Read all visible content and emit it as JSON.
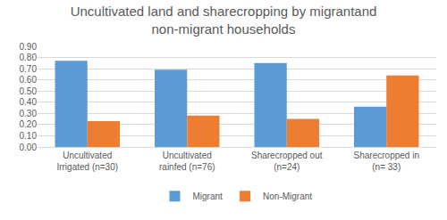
{
  "chart_data": {
    "type": "bar",
    "title": "Uncultivated land and sharecropping by migrantand non-migrant households",
    "categories": [
      "Uncultivated Irrigated (n=30)",
      "Uncultivated rainfed (n=76)",
      "Sharecropped out (n=24)",
      "Sharecropped in (n= 33)"
    ],
    "series": [
      {
        "name": "Migrant",
        "color": "#5B9BD5",
        "values": [
          0.77,
          0.69,
          0.75,
          0.36
        ]
      },
      {
        "name": "Non-Migrant",
        "color": "#ED7D31",
        "values": [
          0.23,
          0.28,
          0.25,
          0.64
        ]
      }
    ],
    "ylim": [
      0,
      0.9
    ],
    "yticks": [
      {
        "value": 0,
        "label": "0.00"
      },
      {
        "value": 0.1,
        "label": "0.10"
      },
      {
        "value": 0.2,
        "label": "0.20"
      },
      {
        "value": 0.3,
        "label": "0.30"
      },
      {
        "value": 0.4,
        "label": "0.40"
      },
      {
        "value": 0.5,
        "label": "0.50"
      },
      {
        "value": 0.6,
        "label": "0.60"
      },
      {
        "value": 0.7,
        "label": "0.70"
      },
      {
        "value": 0.8,
        "label": "0.80"
      },
      {
        "value": 0.9,
        "label": "0.90"
      }
    ],
    "grid": true,
    "legend": "bottom"
  }
}
